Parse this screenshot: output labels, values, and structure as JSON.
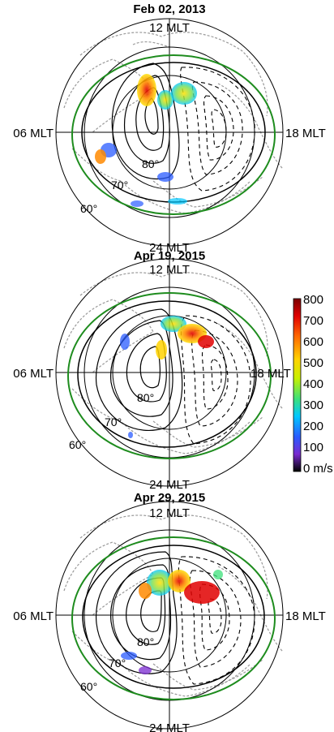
{
  "panels": [
    {
      "title": "Feb 02, 2013",
      "mlt_labels": {
        "top": "12 MLT",
        "bottom": "24 MLT",
        "left": "06 MLT",
        "right": "18 MLT"
      },
      "lat_labels": [
        "80°",
        "70°",
        "60°"
      ]
    },
    {
      "title": "Apr 19, 2015",
      "mlt_labels": {
        "top": "12 MLT",
        "bottom": "24 MLT",
        "left": "06 MLT",
        "right": "18 MLT"
      },
      "lat_labels": [
        "80°",
        "70°",
        "60°"
      ]
    },
    {
      "title": "Apr 29, 2015",
      "mlt_labels": {
        "top": "12 MLT",
        "bottom": "24 MLT",
        "left": "06 MLT",
        "right": "18 MLT"
      },
      "lat_labels": [
        "80°",
        "70°",
        "60°"
      ]
    }
  ],
  "colorbar": {
    "labels": [
      "800",
      "700",
      "600",
      "500",
      "400",
      "300",
      "200",
      "100",
      "0 m/s"
    ],
    "colors": [
      "#7a0000",
      "#e00000",
      "#ff6a00",
      "#ffd200",
      "#c8f000",
      "#3ce07a",
      "#00c8ff",
      "#2a5bff",
      "#7a2ad0",
      "#000000"
    ]
  },
  "colors": {
    "contour": "#000000",
    "boundary": "#1e8c1e",
    "coastline": "#9a9a9a"
  }
}
